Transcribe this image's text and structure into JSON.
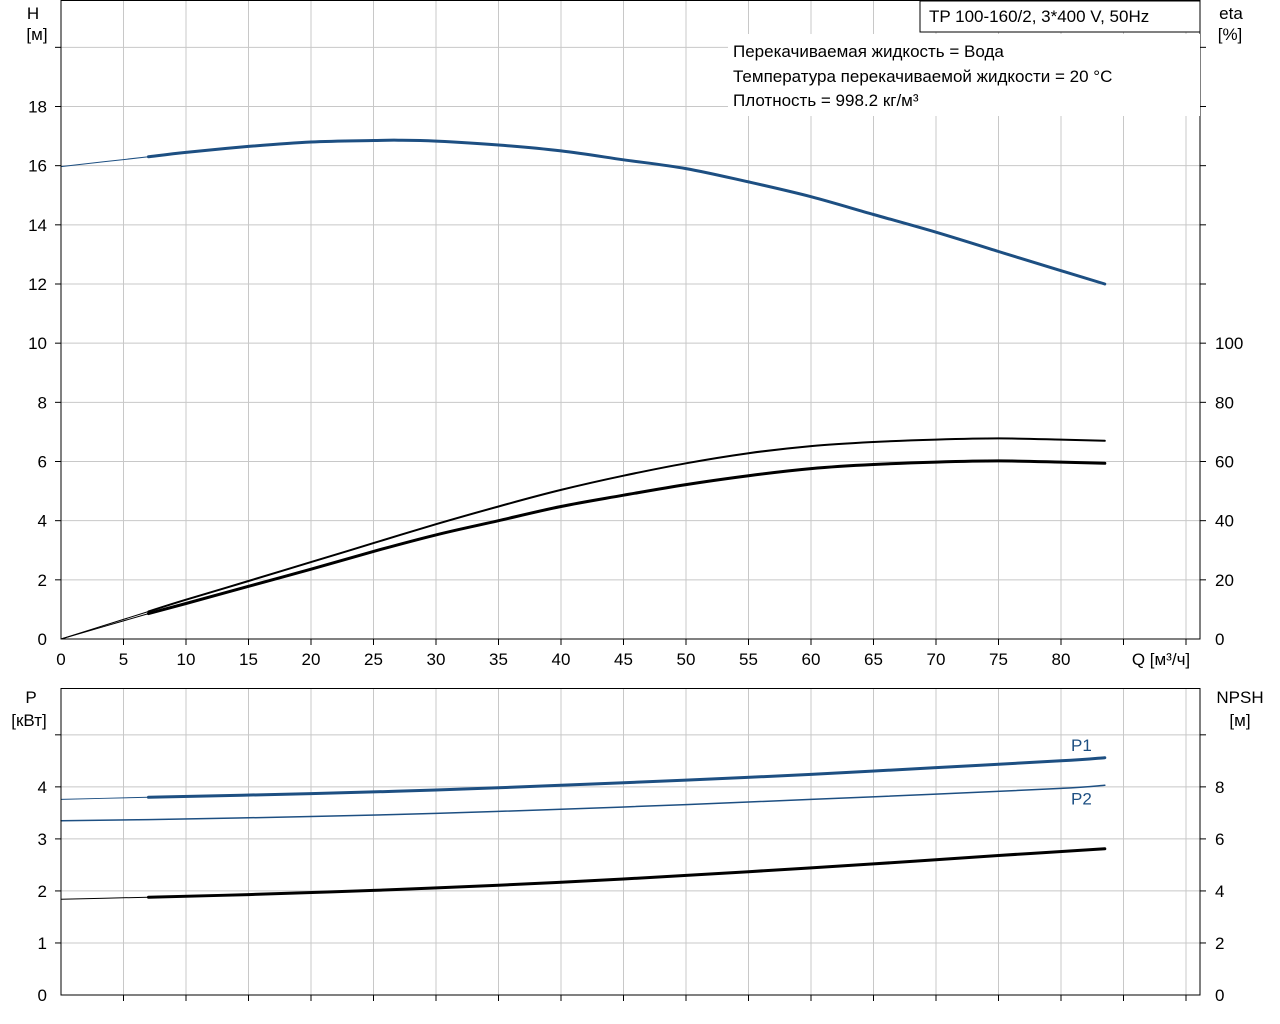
{
  "title": "TP 100-160/2, 3*400 V, 50Hz",
  "info_lines": [
    "Перекачиваемая жидкость = Вода",
    "Температура перекачиваемой жидкости = 20 °C",
    "Плотность = 998.2 кг/м³"
  ],
  "colors": {
    "blue": "#1d4f82",
    "black": "#000000",
    "grid": "#c8c8c8"
  },
  "chart_data": [
    {
      "type": "line",
      "xlabel": "Q [м³/ч]",
      "xlim": [
        0,
        90
      ],
      "x_ticks": [
        0,
        5,
        10,
        15,
        20,
        25,
        30,
        35,
        40,
        45,
        50,
        55,
        60,
        65,
        70,
        75,
        80
      ],
      "y_left": {
        "label_line1": "H",
        "label_line2": "[м]",
        "lim": [
          0,
          21.6
        ],
        "ticks": [
          0,
          2,
          4,
          6,
          8,
          10,
          12,
          14,
          16,
          18
        ]
      },
      "y_right": {
        "label_line1": "eta",
        "label_line2": "[%]",
        "lim": [
          0,
          216
        ],
        "ticks": [
          0,
          20,
          40,
          60,
          80,
          100
        ]
      },
      "grid": true,
      "series": [
        {
          "axis": "left",
          "color": "#1d4f82",
          "width": 3,
          "range": [
            7,
            83.5
          ],
          "x": [
            7,
            10,
            15,
            20,
            25,
            27,
            30,
            35,
            40,
            45,
            50,
            55,
            60,
            65,
            70,
            75,
            80,
            83.5
          ],
          "values": [
            16.3,
            16.45,
            16.65,
            16.8,
            16.85,
            16.86,
            16.83,
            16.7,
            16.5,
            16.2,
            15.9,
            15.45,
            14.95,
            14.35,
            13.75,
            13.1,
            12.45,
            12.0
          ]
        },
        {
          "axis": "left",
          "color": "#1d4f82",
          "width": 1,
          "range": [
            0,
            7
          ],
          "x": [
            0,
            7
          ],
          "values": [
            15.97,
            16.3
          ]
        },
        {
          "axis": "right",
          "color": "#000000",
          "width": 2,
          "range": [
            7,
            83.5
          ],
          "x": [
            7,
            10,
            15,
            20,
            25,
            30,
            35,
            40,
            45,
            50,
            55,
            60,
            65,
            70,
            75,
            80,
            83.5
          ],
          "values": [
            9.3,
            13.3,
            19.6,
            26.0,
            32.4,
            38.8,
            44.8,
            50.4,
            55.2,
            59.4,
            62.8,
            65.2,
            66.6,
            67.4,
            67.8,
            67.4,
            67.0
          ]
        },
        {
          "axis": "right",
          "color": "#000000",
          "width": 3,
          "range": [
            7,
            83.5
          ],
          "x": [
            7,
            10,
            15,
            20,
            25,
            30,
            35,
            40,
            45,
            50,
            55,
            60,
            65,
            70,
            75,
            80,
            83.5
          ],
          "values": [
            8.6,
            12.0,
            17.8,
            23.6,
            29.6,
            35.2,
            40.0,
            44.8,
            48.6,
            52.2,
            55.2,
            57.6,
            59.0,
            59.8,
            60.2,
            59.8,
            59.4
          ]
        },
        {
          "axis": "right",
          "color": "#000000",
          "width": 1,
          "range": [
            0,
            7
          ],
          "x": [
            0,
            7
          ],
          "values": [
            0,
            9.3
          ]
        },
        {
          "axis": "right",
          "color": "#000000",
          "width": 1,
          "range": [
            0,
            7
          ],
          "x": [
            0,
            7
          ],
          "values": [
            0,
            8.6
          ]
        }
      ]
    },
    {
      "type": "line",
      "xlim": [
        0,
        90
      ],
      "y_left": {
        "label_line1": "P",
        "label_line2": "[кВт]",
        "lim": [
          0,
          5.9
        ],
        "ticks": [
          0,
          1,
          2,
          3,
          4
        ]
      },
      "y_right": {
        "label_line1": "NPSH",
        "label_line2": "[м]",
        "lim": [
          0,
          11.8
        ],
        "ticks": [
          0,
          2,
          4,
          6,
          8
        ]
      },
      "grid": true,
      "series": [
        {
          "name": "P1",
          "axis": "left",
          "color": "#1d4f82",
          "width": 3,
          "x": [
            7,
            20,
            30,
            40,
            50,
            60,
            70,
            80,
            83.5
          ],
          "values": [
            3.8,
            3.87,
            3.94,
            4.03,
            4.13,
            4.24,
            4.37,
            4.5,
            4.56
          ],
          "label_at": [
            80,
            4.8
          ]
        },
        {
          "axis": "left",
          "color": "#1d4f82",
          "width": 1,
          "x": [
            0,
            7
          ],
          "values": [
            3.76,
            3.8
          ]
        },
        {
          "name": "P2",
          "axis": "left",
          "color": "#1d4f82",
          "width": 1.5,
          "x": [
            0,
            7,
            20,
            30,
            40,
            50,
            60,
            70,
            80,
            83.5
          ],
          "values": [
            3.35,
            3.37,
            3.43,
            3.49,
            3.57,
            3.66,
            3.76,
            3.86,
            3.97,
            4.03
          ],
          "label_at": [
            80,
            3.78
          ]
        },
        {
          "axis": "right",
          "color": "#000000",
          "width": 3,
          "x": [
            7,
            15,
            25,
            35,
            45,
            55,
            65,
            75,
            83.5
          ],
          "values": [
            3.76,
            3.86,
            4.02,
            4.22,
            4.46,
            4.74,
            5.04,
            5.36,
            5.62
          ]
        },
        {
          "axis": "right",
          "color": "#000000",
          "width": 1,
          "x": [
            0,
            7
          ],
          "values": [
            3.68,
            3.76
          ]
        }
      ]
    }
  ]
}
